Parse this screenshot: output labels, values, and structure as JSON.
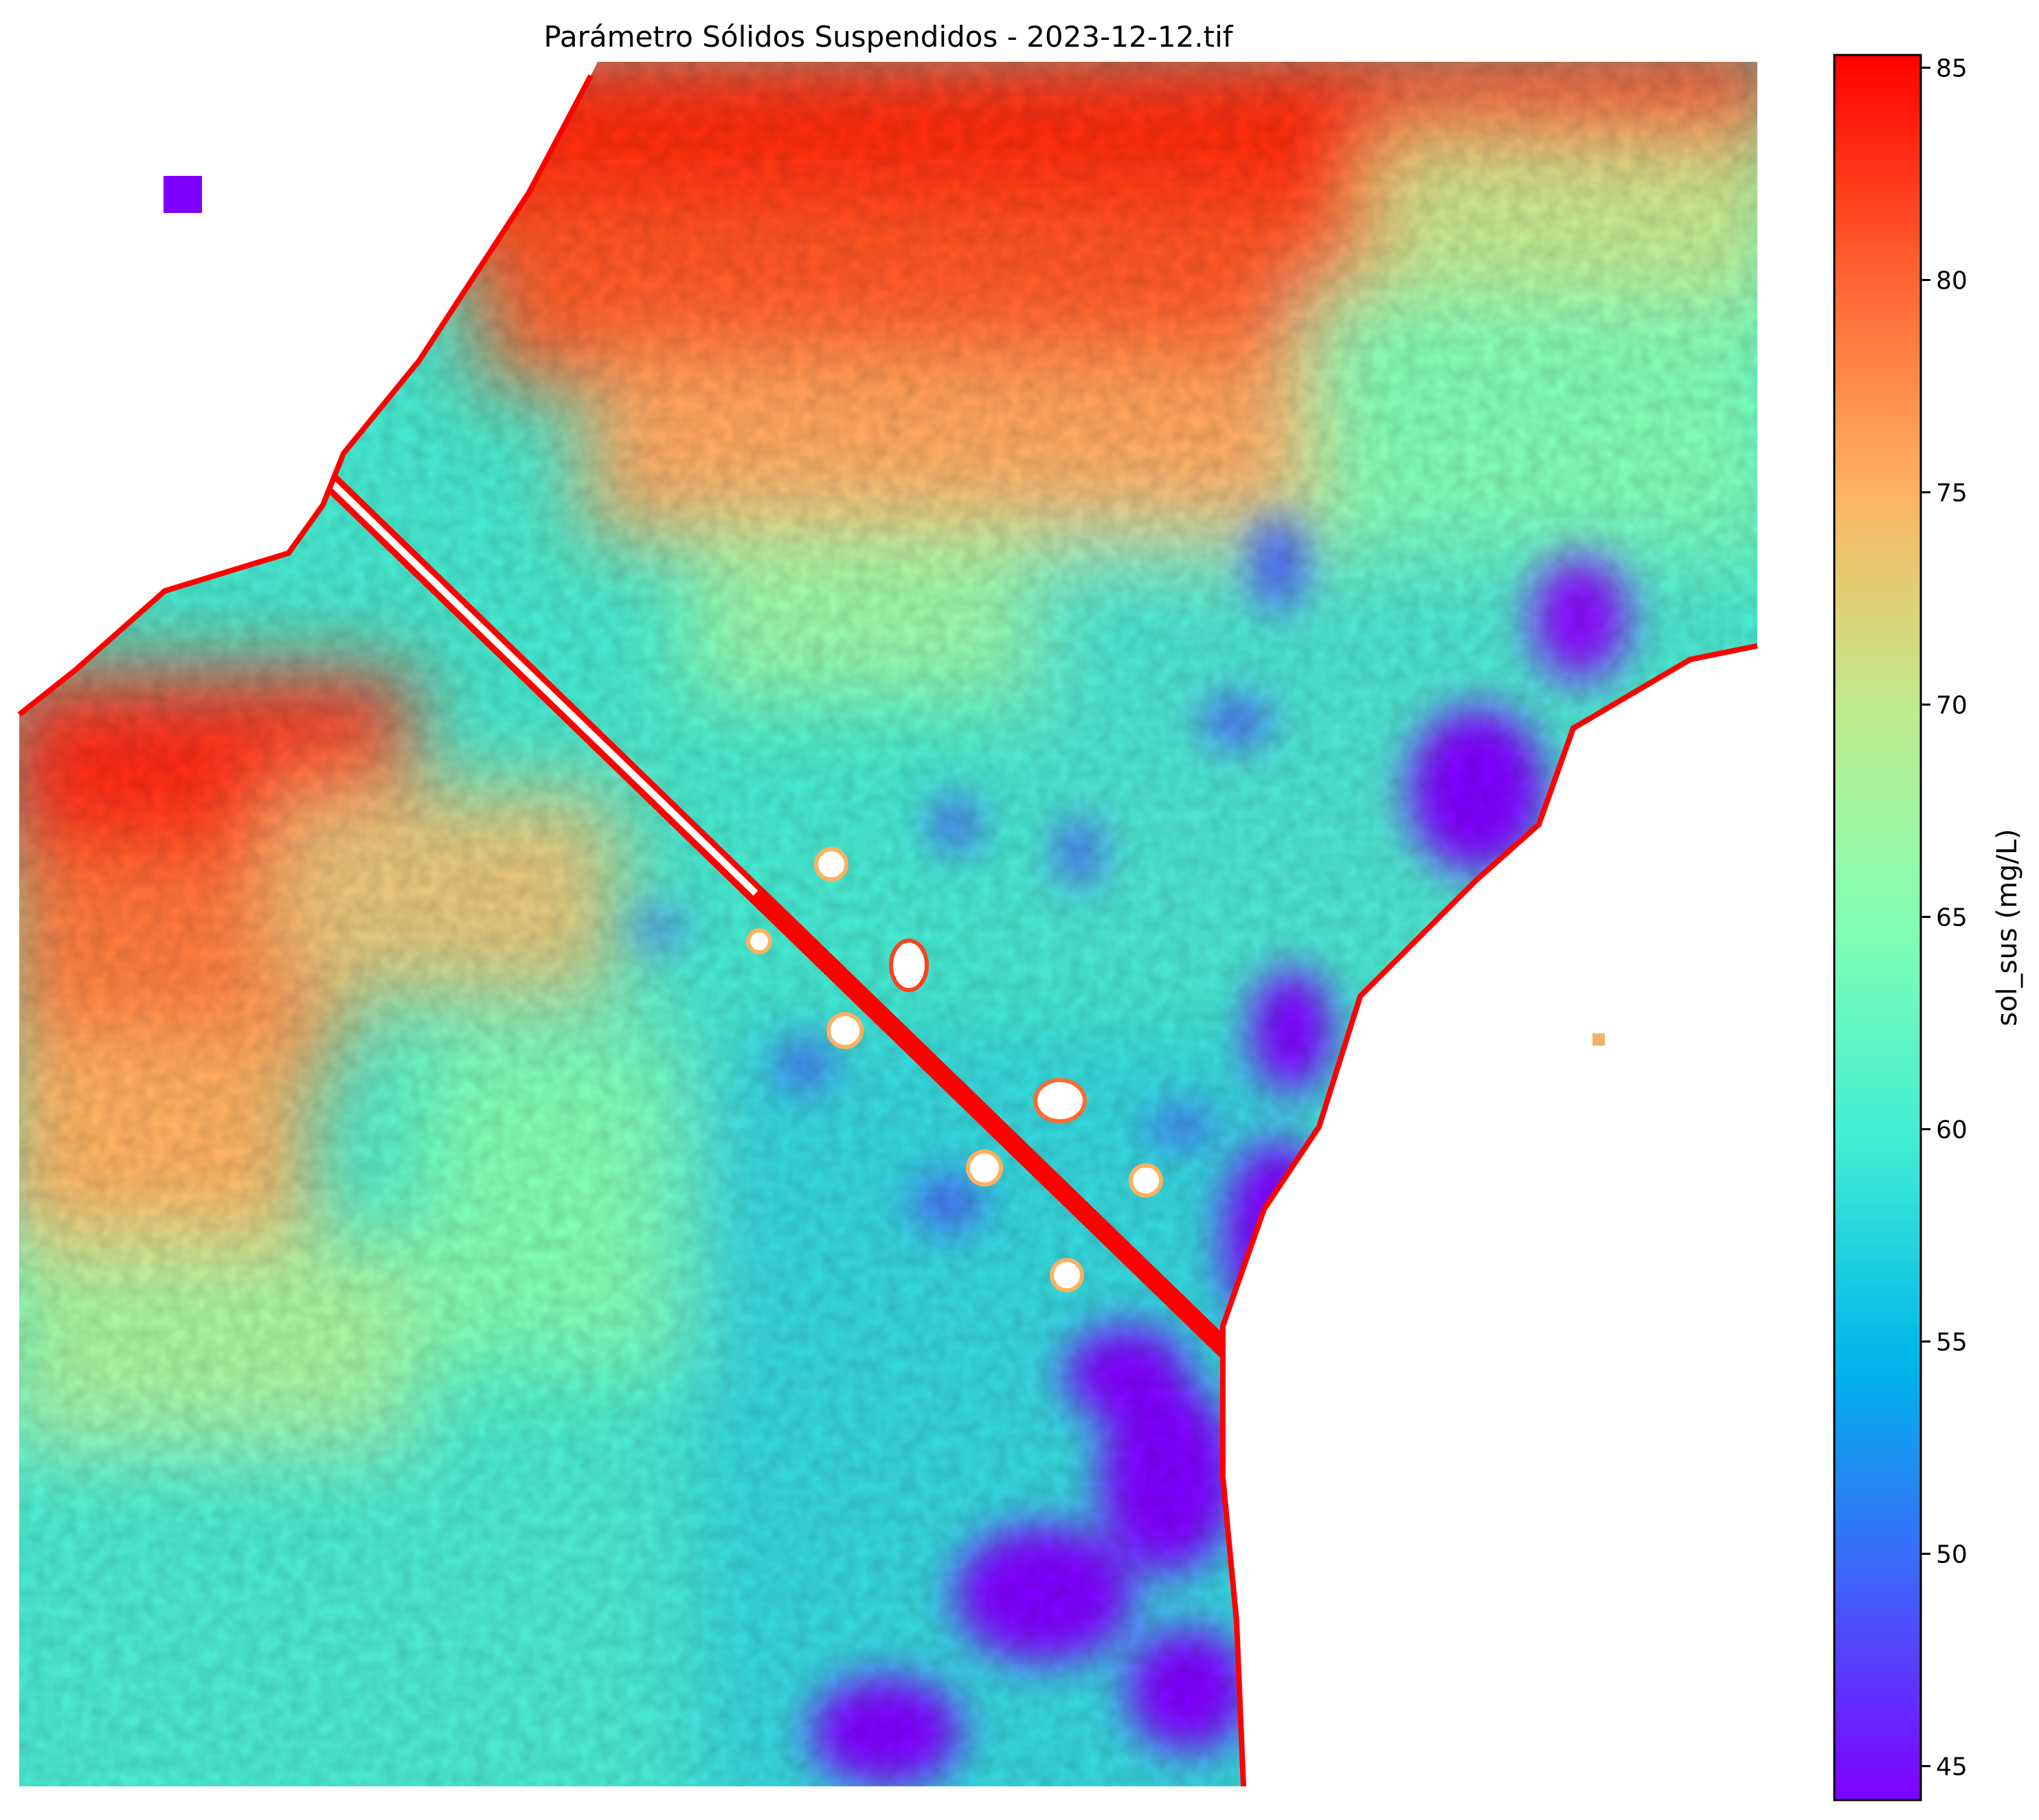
{
  "chart_data": {
    "type": "heatmap",
    "title": "Parámetro Sólidos Suspendidos - 2023-12-12.tif",
    "colormap": "rainbow",
    "nodata_color": "#ffffff",
    "axes_visible": false,
    "colorbar": {
      "label": "sol_sus (mg/L)",
      "vmin": 44.2,
      "vmax": 85.3,
      "ticks": [
        45,
        50,
        55,
        60,
        65,
        70,
        75,
        80,
        85
      ],
      "placement": "right"
    },
    "regions": {
      "north_plume": "high values 78-85 mg/L",
      "southwest_plume": "high values 75-85 mg/L",
      "central_water": "mid values 57-65 mg/L",
      "coastal_patches": "low values 44-50 mg/L",
      "diagonal_stripe": "artifact line with values near 85 mg/L",
      "land": "no data"
    }
  }
}
